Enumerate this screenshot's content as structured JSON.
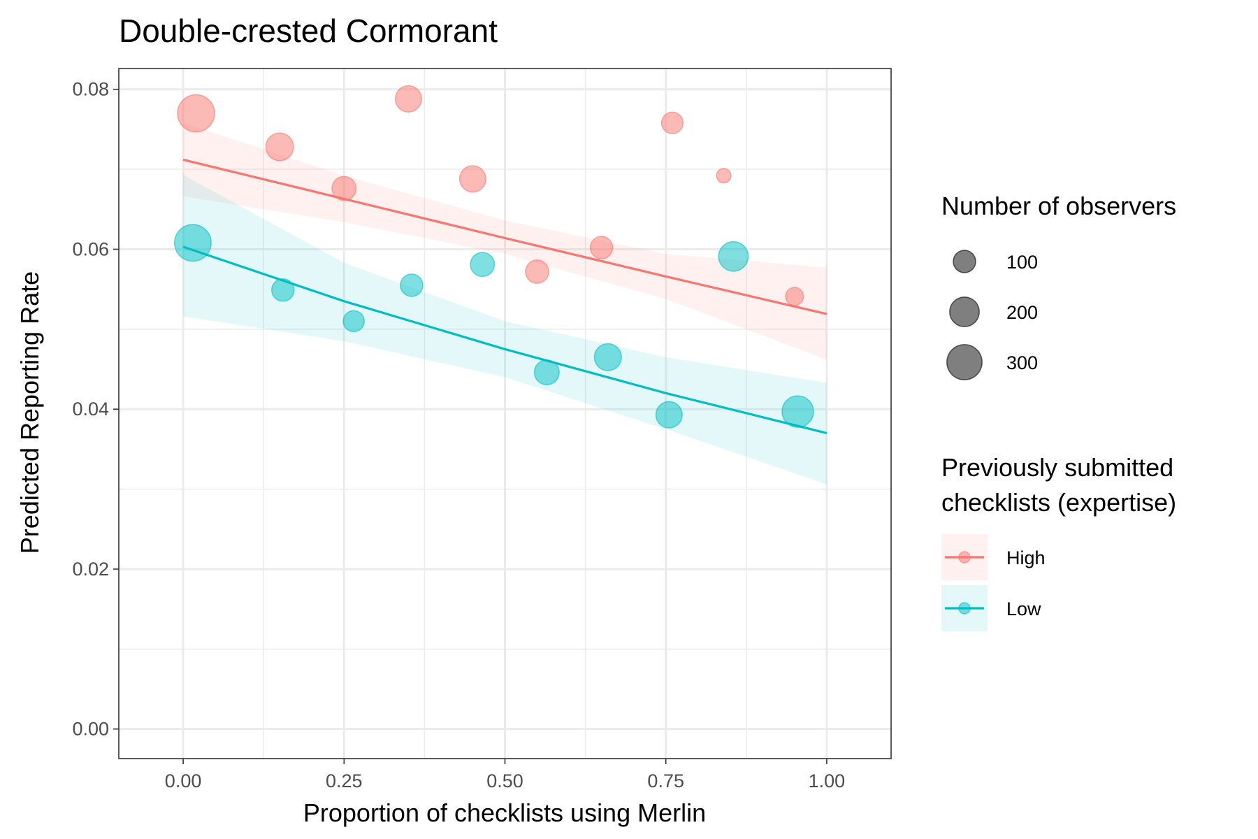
{
  "chart_data": {
    "type": "scatter",
    "title": "Double-crested Cormorant",
    "xlabel": "Proportion of checklists using Merlin",
    "ylabel": "Predicted Reporting Rate",
    "xlim": [
      -0.1,
      1.1
    ],
    "ylim": [
      -0.0037,
      0.0826
    ],
    "x_ticks": [
      0.0,
      0.25,
      0.5,
      0.75,
      1.0
    ],
    "x_tick_labels": [
      "0.00",
      "0.25",
      "0.50",
      "0.75",
      "1.00"
    ],
    "y_ticks": [
      0.0,
      0.02,
      0.04,
      0.06,
      0.08
    ],
    "y_tick_labels": [
      "0.00",
      "0.02",
      "0.04",
      "0.06",
      "0.08"
    ],
    "grid": true,
    "legend_placement": "right",
    "size_legend": {
      "title": "Number of observers",
      "entries": [
        {
          "label": "100",
          "value": 100
        },
        {
          "label": "200",
          "value": 200
        },
        {
          "label": "300",
          "value": 300
        }
      ]
    },
    "color_legend": {
      "title_lines": [
        "Previously submitted",
        "checklists (expertise)"
      ]
    },
    "series": [
      {
        "name": "High",
        "color": "#F8766D",
        "points": [
          {
            "x": 0.02,
            "y": 0.077,
            "n": 340
          },
          {
            "x": 0.15,
            "y": 0.0728,
            "n": 170
          },
          {
            "x": 0.25,
            "y": 0.0676,
            "n": 120
          },
          {
            "x": 0.35,
            "y": 0.0788,
            "n": 150
          },
          {
            "x": 0.45,
            "y": 0.0688,
            "n": 150
          },
          {
            "x": 0.55,
            "y": 0.0572,
            "n": 110
          },
          {
            "x": 0.65,
            "y": 0.0602,
            "n": 100
          },
          {
            "x": 0.76,
            "y": 0.0758,
            "n": 90
          },
          {
            "x": 0.84,
            "y": 0.0692,
            "n": 30
          },
          {
            "x": 0.95,
            "y": 0.0541,
            "n": 55
          }
        ],
        "trend": {
          "x": [
            0.0,
            0.25,
            0.5,
            0.75,
            1.0
          ],
          "y": [
            0.0712,
            0.0663,
            0.0614,
            0.0566,
            0.0519
          ],
          "ci_low": [
            0.0666,
            0.0634,
            0.0594,
            0.0538,
            0.0462
          ],
          "ci_high": [
            0.0758,
            0.0692,
            0.0636,
            0.0594,
            0.0577
          ]
        }
      },
      {
        "name": "Low",
        "color": "#00BFC4",
        "points": [
          {
            "x": 0.015,
            "y": 0.0608,
            "n": 330
          },
          {
            "x": 0.155,
            "y": 0.0549,
            "n": 100
          },
          {
            "x": 0.265,
            "y": 0.051,
            "n": 85
          },
          {
            "x": 0.355,
            "y": 0.0555,
            "n": 100
          },
          {
            "x": 0.465,
            "y": 0.0581,
            "n": 120
          },
          {
            "x": 0.565,
            "y": 0.0446,
            "n": 130
          },
          {
            "x": 0.66,
            "y": 0.0465,
            "n": 160
          },
          {
            "x": 0.755,
            "y": 0.0393,
            "n": 150
          },
          {
            "x": 0.855,
            "y": 0.0591,
            "n": 200
          },
          {
            "x": 0.955,
            "y": 0.0397,
            "n": 230
          }
        ],
        "trend": {
          "x": [
            0.0,
            0.25,
            0.5,
            0.75,
            1.0
          ],
          "y": [
            0.0603,
            0.0535,
            0.0475,
            0.042,
            0.037
          ],
          "ci_low": [
            0.0516,
            0.0485,
            0.044,
            0.0375,
            0.0306
          ],
          "ci_high": [
            0.0693,
            0.0583,
            0.051,
            0.0465,
            0.0433
          ]
        }
      }
    ]
  }
}
